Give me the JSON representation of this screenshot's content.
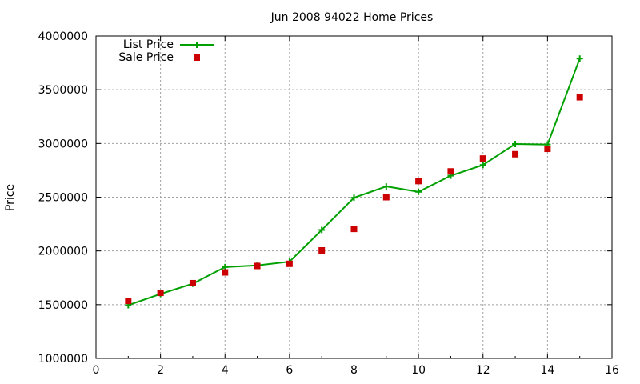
{
  "chart_data": {
    "type": "line",
    "title": "Jun 2008 94022 Home Prices",
    "xlabel": "",
    "ylabel": "Price",
    "xlim": [
      0,
      16
    ],
    "ylim": [
      1000000,
      4000000
    ],
    "x_ticks": [
      0,
      2,
      4,
      6,
      8,
      10,
      12,
      14,
      16
    ],
    "y_ticks": [
      1000000,
      1500000,
      2000000,
      2500000,
      3000000,
      3500000,
      4000000
    ],
    "grid": true,
    "legend_position": "top-left",
    "series": [
      {
        "name": "List Price",
        "style": "line-with-plus-markers",
        "color": "#00a000",
        "x": [
          1,
          2,
          3,
          4,
          5,
          6,
          7,
          8,
          9,
          10,
          11,
          12,
          13,
          14,
          15
        ],
        "values": [
          1495000,
          1600000,
          1695000,
          1850000,
          1865000,
          1900000,
          2195000,
          2495000,
          2600000,
          2550000,
          2700000,
          2800000,
          2995000,
          2990000,
          3790000
        ]
      },
      {
        "name": "Sale Price",
        "style": "square-markers",
        "color": "#cc0000",
        "x": [
          1,
          2,
          3,
          4,
          5,
          6,
          7,
          8,
          9,
          10,
          11,
          12,
          13,
          14,
          15
        ],
        "values": [
          1535000,
          1610000,
          1700000,
          1800000,
          1860000,
          1880000,
          2005000,
          2205000,
          2500000,
          2650000,
          2740000,
          2860000,
          2900000,
          2950000,
          3430000
        ]
      }
    ]
  }
}
